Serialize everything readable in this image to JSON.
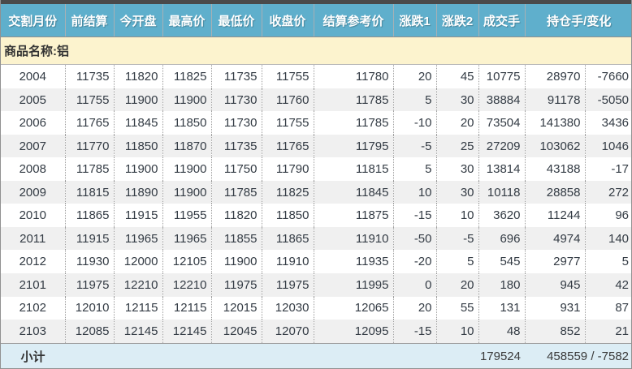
{
  "header": {
    "columns": [
      "交割月份",
      "前结算",
      "今开盘",
      "最高价",
      "最低价",
      "收盘价",
      "结算参考价",
      "涨跌1",
      "涨跌2",
      "成交手",
      "持仓手/变化"
    ]
  },
  "group": {
    "label": "商品名称:铝"
  },
  "rows": [
    {
      "month": "2004",
      "prev_settle": "11735",
      "open": "11820",
      "high": "11825",
      "low": "11735",
      "close": "11755",
      "settle_ref": "11780",
      "chg1": "20",
      "chg2": "45",
      "volume": "10775",
      "oi": "28970",
      "oi_chg": "-7660"
    },
    {
      "month": "2005",
      "prev_settle": "11755",
      "open": "11900",
      "high": "11900",
      "low": "11730",
      "close": "11760",
      "settle_ref": "11785",
      "chg1": "5",
      "chg2": "30",
      "volume": "38884",
      "oi": "91178",
      "oi_chg": "-5050"
    },
    {
      "month": "2006",
      "prev_settle": "11765",
      "open": "11845",
      "high": "11850",
      "low": "11730",
      "close": "11755",
      "settle_ref": "11785",
      "chg1": "-10",
      "chg2": "20",
      "volume": "73504",
      "oi": "141380",
      "oi_chg": "3436"
    },
    {
      "month": "2007",
      "prev_settle": "11770",
      "open": "11850",
      "high": "11870",
      "low": "11735",
      "close": "11765",
      "settle_ref": "11795",
      "chg1": "-5",
      "chg2": "25",
      "volume": "27209",
      "oi": "103062",
      "oi_chg": "1046"
    },
    {
      "month": "2008",
      "prev_settle": "11785",
      "open": "11900",
      "high": "11900",
      "low": "11750",
      "close": "11790",
      "settle_ref": "11815",
      "chg1": "5",
      "chg2": "30",
      "volume": "13814",
      "oi": "43188",
      "oi_chg": "-17"
    },
    {
      "month": "2009",
      "prev_settle": "11815",
      "open": "11890",
      "high": "11900",
      "low": "11785",
      "close": "11825",
      "settle_ref": "11845",
      "chg1": "10",
      "chg2": "30",
      "volume": "10118",
      "oi": "28858",
      "oi_chg": "272"
    },
    {
      "month": "2010",
      "prev_settle": "11865",
      "open": "11915",
      "high": "11955",
      "low": "11820",
      "close": "11850",
      "settle_ref": "11875",
      "chg1": "-15",
      "chg2": "10",
      "volume": "3620",
      "oi": "11244",
      "oi_chg": "96"
    },
    {
      "month": "2011",
      "prev_settle": "11915",
      "open": "11965",
      "high": "11965",
      "low": "11855",
      "close": "11865",
      "settle_ref": "11910",
      "chg1": "-50",
      "chg2": "-5",
      "volume": "696",
      "oi": "4974",
      "oi_chg": "140"
    },
    {
      "month": "2012",
      "prev_settle": "11930",
      "open": "12000",
      "high": "12105",
      "low": "11900",
      "close": "11910",
      "settle_ref": "11935",
      "chg1": "-20",
      "chg2": "5",
      "volume": "545",
      "oi": "2977",
      "oi_chg": "5"
    },
    {
      "month": "2101",
      "prev_settle": "11975",
      "open": "12210",
      "high": "12210",
      "low": "11975",
      "close": "11975",
      "settle_ref": "11995",
      "chg1": "0",
      "chg2": "20",
      "volume": "180",
      "oi": "945",
      "oi_chg": "42"
    },
    {
      "month": "2102",
      "prev_settle": "12010",
      "open": "12115",
      "high": "12115",
      "low": "12015",
      "close": "12030",
      "settle_ref": "12065",
      "chg1": "20",
      "chg2": "55",
      "volume": "131",
      "oi": "931",
      "oi_chg": "87"
    },
    {
      "month": "2103",
      "prev_settle": "12085",
      "open": "12145",
      "high": "12145",
      "low": "12045",
      "close": "12070",
      "settle_ref": "12095",
      "chg1": "-15",
      "chg2": "10",
      "volume": "48",
      "oi": "852",
      "oi_chg": "21"
    }
  ],
  "footer": {
    "label": "小计",
    "volume": "179524",
    "oi_and_change": "458559 / -7582"
  },
  "colors": {
    "header_bg": "#5fafcc",
    "group_row_bg": "#fcf3ce",
    "stripe_bg": "#f0f0f0",
    "footer_bg": "#dcedf5",
    "top_strip": "#4a4a4a",
    "text": "#333b44"
  }
}
